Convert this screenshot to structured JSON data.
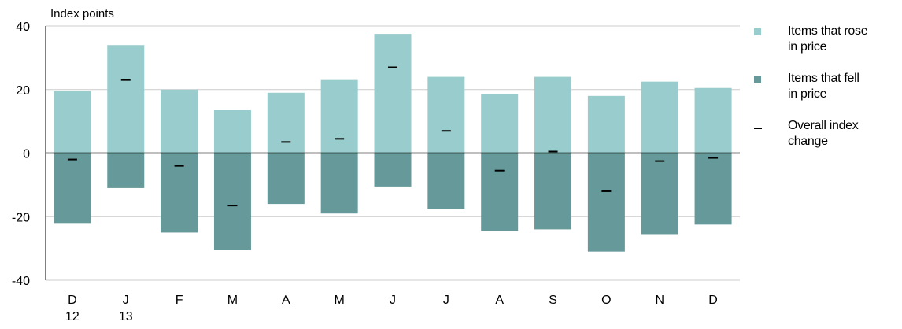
{
  "chart_data": {
    "type": "bar",
    "ylabel": "Index points",
    "ylim": [
      -40,
      40
    ],
    "yticks": [
      40,
      20,
      0,
      -20,
      -40
    ],
    "categories": [
      "D\n12",
      "J\n13",
      "F",
      "M",
      "A",
      "M",
      "J",
      "J",
      "A",
      "S",
      "O",
      "N",
      "D"
    ],
    "series": [
      {
        "name": "Items that rose in price",
        "color": "#99cccc",
        "values": [
          19.5,
          34,
          20,
          13.5,
          19,
          23,
          37.5,
          24,
          18.5,
          24,
          18,
          22.5,
          20.5
        ]
      },
      {
        "name": "Items that fell in price",
        "color": "#669999",
        "values": [
          -22,
          -11,
          -25,
          -30.5,
          -16,
          -19,
          -10.5,
          -17.5,
          -24.5,
          -24,
          -31,
          -25.5,
          -22.5
        ]
      },
      {
        "name": "Overall index change",
        "color": "#000000",
        "values": [
          -2,
          23,
          -4,
          -16.5,
          3.5,
          4.5,
          27,
          7,
          -5.5,
          0.5,
          -12,
          -2.5,
          -1.5
        ]
      }
    ],
    "grid": true,
    "legend_position": "right"
  },
  "legend": {
    "rose_line1": "Items that rose",
    "rose_line2": "in price",
    "fell_line1": "Items that fell",
    "fell_line2": "in price",
    "overall_line1": "Overall index",
    "overall_line2": "change"
  }
}
